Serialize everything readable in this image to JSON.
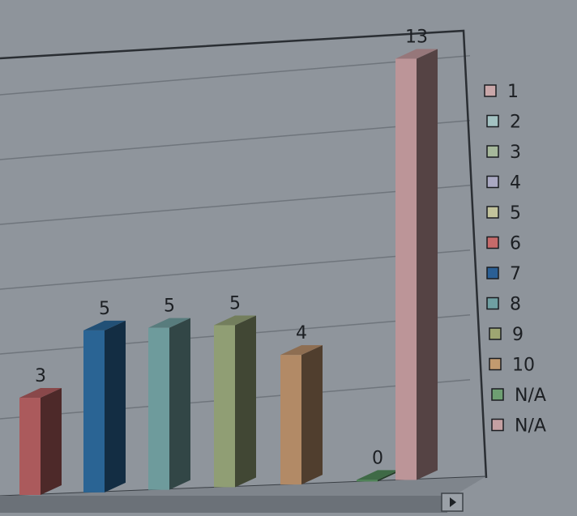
{
  "chart_data": {
    "type": "bar",
    "categories": [
      "6",
      "7",
      "8",
      "9",
      "10",
      "N/A",
      "N/A"
    ],
    "values": [
      3,
      5,
      5,
      5,
      4,
      0,
      13
    ],
    "data_labels": [
      "3",
      "5",
      "5",
      "5",
      "4",
      "0",
      "13"
    ],
    "colors": [
      "#ab5a5c",
      "#2a6494",
      "#6e9b9c",
      "#909e74",
      "#b28a66",
      "#4f8558",
      "#bc9598"
    ],
    "title": "",
    "xlabel": "",
    "ylabel": "",
    "legend_position": "right",
    "legend": [
      {
        "label": "1",
        "color": "#c9a7a9"
      },
      {
        "label": "2",
        "color": "#a3c2c2"
      },
      {
        "label": "3",
        "color": "#a6b89b"
      },
      {
        "label": "4",
        "color": "#a9a8c2"
      },
      {
        "label": "5",
        "color": "#c2c39c"
      },
      {
        "label": "6",
        "color": "#c66a6a"
      },
      {
        "label": "7",
        "color": "#2a5f95"
      },
      {
        "label": "8",
        "color": "#6f9fa2"
      },
      {
        "label": "9",
        "color": "#9ea672"
      },
      {
        "label": "10",
        "color": "#c29a6f"
      },
      {
        "label": "N/A",
        "color": "#6e9f72"
      },
      {
        "label": "N/A",
        "color": "#c4a0a2"
      }
    ],
    "grid": true,
    "style": "3d"
  }
}
